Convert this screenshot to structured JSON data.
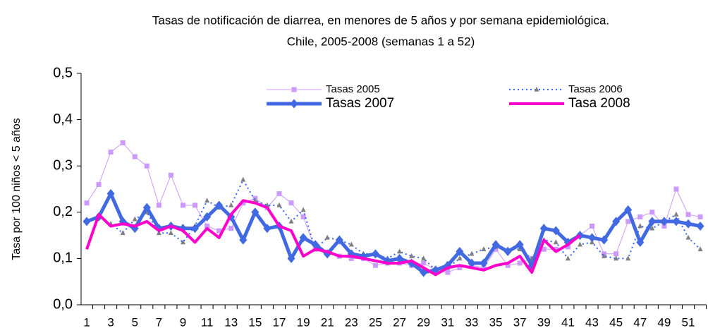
{
  "chart_data": {
    "type": "line",
    "title": "Tasas de notificación de diarrea, en menores de 5 años y por semana  epidemiológica.",
    "subtitle": "Chile,  2005-2008 (semanas 1 a 52)",
    "y_label": "Tasa por 100 niños < 5 años",
    "categories": [
      1,
      null,
      3,
      null,
      5,
      null,
      7,
      null,
      9,
      null,
      11,
      null,
      13,
      null,
      15,
      null,
      17,
      null,
      19,
      null,
      21,
      null,
      23,
      null,
      25,
      null,
      27,
      null,
      29,
      null,
      31,
      null,
      33,
      null,
      35,
      null,
      37,
      null,
      39,
      null,
      41,
      null,
      43,
      null,
      45,
      null,
      47,
      null,
      49,
      null,
      51,
      null
    ],
    "ylim": [
      0,
      0.5
    ],
    "yticks": [
      {
        "value": 0,
        "label": "0,0"
      },
      {
        "value": 0.1,
        "label": "0,1"
      },
      {
        "value": 0.2,
        "label": "0,2"
      },
      {
        "value": 0.3,
        "label": "0,3"
      },
      {
        "value": 0.4,
        "label": "0,4"
      },
      {
        "value": 0.5,
        "label": "0,5"
      }
    ],
    "grid": false,
    "series": [
      {
        "name": "Tasas 2005",
        "color": "#cc99ff",
        "marker": "square",
        "dash": false,
        "values": [
          0.22,
          0.26,
          0.33,
          0.35,
          0.32,
          0.3,
          0.215,
          0.28,
          0.215,
          0.215,
          0.17,
          0.16,
          0.165,
          0.22,
          0.23,
          0.21,
          0.24,
          0.22,
          0.19,
          0.12,
          0.11,
          0.105,
          0.1,
          0.1,
          0.085,
          0.09,
          0.09,
          0.085,
          0.09,
          0.075,
          0.07,
          0.08,
          0.085,
          0.08,
          0.12,
          0.085,
          0.09,
          0.1,
          0.12,
          0.12,
          0.125,
          0.15,
          0.17,
          0.11,
          0.11,
          0.18,
          0.19,
          0.2,
          0.17,
          0.25,
          0.195,
          0.19
        ]
      },
      {
        "name": "Tasas 2006",
        "color": "#3366ff",
        "marker_color": "#808080",
        "marker": "triangle",
        "dash": true,
        "values": [
          0.18,
          0.19,
          0.175,
          0.155,
          0.185,
          0.2,
          0.155,
          0.155,
          0.135,
          0.17,
          0.225,
          0.21,
          0.215,
          0.27,
          0.225,
          0.215,
          0.215,
          0.18,
          0.205,
          0.12,
          0.145,
          0.14,
          0.13,
          0.11,
          0.11,
          0.1,
          0.115,
          0.105,
          0.1,
          0.075,
          0.08,
          0.1,
          0.11,
          0.12,
          0.125,
          0.12,
          0.12,
          0.1,
          0.14,
          0.135,
          0.1,
          0.13,
          0.135,
          0.105,
          0.1,
          0.1,
          0.17,
          0.165,
          0.18,
          0.195,
          0.145,
          0.12
        ]
      },
      {
        "name": "Tasas 2007",
        "color": "#4169e1",
        "marker": "diamond",
        "dash": false,
        "values": [
          0.18,
          0.19,
          0.24,
          0.18,
          0.165,
          0.21,
          0.165,
          0.17,
          0.165,
          0.165,
          0.19,
          0.215,
          0.19,
          0.14,
          0.2,
          0.165,
          0.17,
          0.1,
          0.145,
          0.13,
          0.11,
          0.14,
          0.11,
          0.105,
          0.11,
          0.095,
          0.1,
          0.09,
          0.07,
          0.075,
          0.085,
          0.115,
          0.09,
          0.09,
          0.13,
          0.115,
          0.13,
          0.085,
          0.165,
          0.16,
          0.135,
          0.15,
          0.145,
          0.14,
          0.18,
          0.205,
          0.135,
          0.18,
          0.18,
          0.18,
          0.175,
          0.17
        ]
      },
      {
        "name": "Tasa 2008",
        "color": "#ff00cc",
        "marker": "none",
        "dash": false,
        "values": [
          0.12,
          0.195,
          0.17,
          0.175,
          0.17,
          0.18,
          0.16,
          0.17,
          0.16,
          0.135,
          0.165,
          0.145,
          0.195,
          0.225,
          0.22,
          0.21,
          0.17,
          0.16,
          0.105,
          0.12,
          0.115,
          0.105,
          0.105,
          0.1,
          0.095,
          0.09,
          0.09,
          0.095,
          0.08,
          0.065,
          0.08,
          0.085,
          0.08,
          0.075,
          0.085,
          0.09,
          0.105,
          0.07,
          0.14,
          0.115,
          0.13,
          0.15,
          null,
          null,
          null,
          null,
          null,
          null,
          null,
          null,
          null,
          null
        ]
      }
    ]
  }
}
